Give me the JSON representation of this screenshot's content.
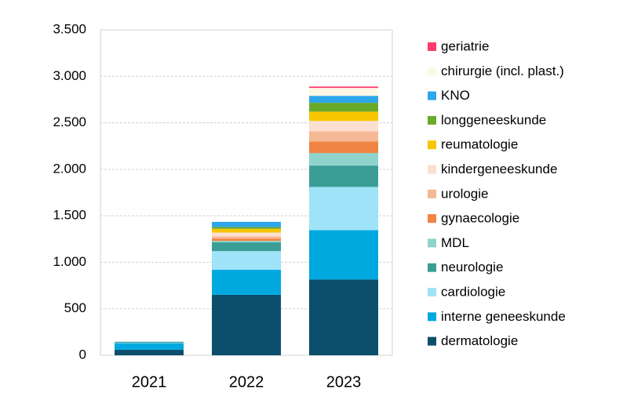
{
  "chart_data": {
    "type": "stacked_bar",
    "categories": [
      "2021",
      "2022",
      "2023"
    ],
    "series": [
      {
        "name": "dermatologie",
        "color": "#0b4f6c",
        "values": [
          60,
          650,
          815
        ]
      },
      {
        "name": "interne geneeskunde",
        "color": "#00a8e0",
        "values": [
          70,
          270,
          530
        ]
      },
      {
        "name": "cardiologie",
        "color": "#9ee3f8",
        "values": [
          5,
          200,
          465
        ]
      },
      {
        "name": "neurologie",
        "color": "#3a9e96",
        "values": [
          10,
          95,
          230
        ]
      },
      {
        "name": "MDL",
        "color": "#8fd4cc",
        "values": [
          null,
          15,
          135
        ]
      },
      {
        "name": "gynaecologie",
        "color": "#f08442",
        "values": [
          null,
          25,
          125
        ]
      },
      {
        "name": "urologie",
        "color": "#f5b895",
        "values": [
          null,
          25,
          110
        ]
      },
      {
        "name": "kindergeneeskunde",
        "color": "#fbe0d2",
        "values": [
          null,
          40,
          110
        ]
      },
      {
        "name": "reumatologie",
        "color": "#f7c600",
        "values": [
          null,
          40,
          100
        ]
      },
      {
        "name": "longgeneeskunde",
        "color": "#6aaa2a",
        "values": [
          null,
          20,
          95
        ]
      },
      {
        "name": "KNO",
        "color": "#2ea6ec",
        "values": [
          null,
          55,
          75
        ]
      },
      {
        "name": "chirurgie (incl. plast.)",
        "color": "#fdf8e6",
        "values": [
          null,
          null,
          85
        ]
      },
      {
        "name": "geriatrie",
        "color": "#ff3c6e",
        "values": [
          null,
          null,
          15
        ]
      }
    ],
    "ylim": [
      0,
      3500
    ],
    "yticks": [
      0,
      500,
      {
        "value": 1000,
        "label": "1.000"
      },
      {
        "value": 1500,
        "label": "1.500"
      },
      {
        "value": 2000,
        "label": "2.000"
      },
      {
        "value": 2500,
        "label": "2.500"
      },
      {
        "value": 3000,
        "label": "3.000"
      },
      {
        "value": 3500,
        "label": "3.500"
      }
    ],
    "grid": true
  }
}
